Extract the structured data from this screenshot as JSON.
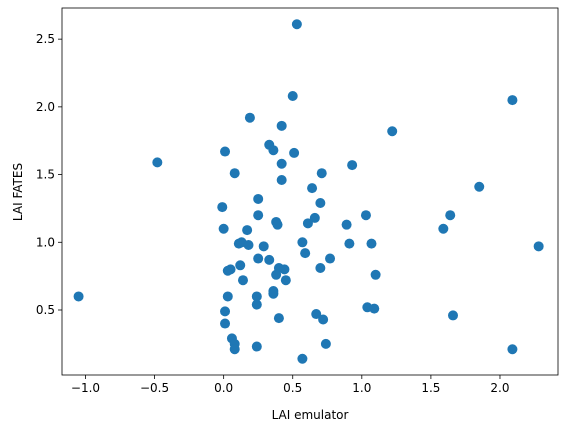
{
  "chart_data": {
    "type": "scatter",
    "title": "",
    "xlabel": "LAI emulator",
    "ylabel": "LAI FATES",
    "xlim": [
      -1.17,
      2.42
    ],
    "ylim": [
      0.02,
      2.73
    ],
    "x_ticks": [
      -1.0,
      -0.5,
      0.0,
      0.5,
      1.0,
      1.5,
      2.0
    ],
    "x_tick_labels": [
      "−1.0",
      "−0.5",
      "0.0",
      "0.5",
      "1.0",
      "1.5",
      "2.0"
    ],
    "y_ticks": [
      0.5,
      1.0,
      1.5,
      2.0,
      2.5
    ],
    "y_tick_labels": [
      "0.5",
      "1.0",
      "1.5",
      "2.0",
      "2.5"
    ],
    "grid": false,
    "legend": false,
    "marker_color": "#1f77b4",
    "points": [
      {
        "x": -1.05,
        "y": 0.6
      },
      {
        "x": -0.48,
        "y": 1.59
      },
      {
        "x": 0.53,
        "y": 2.61
      },
      {
        "x": 0.5,
        "y": 2.08
      },
      {
        "x": 0.19,
        "y": 1.92
      },
      {
        "x": 0.42,
        "y": 1.86
      },
      {
        "x": 0.01,
        "y": 1.67
      },
      {
        "x": 0.33,
        "y": 1.72
      },
      {
        "x": 0.36,
        "y": 1.68
      },
      {
        "x": 0.51,
        "y": 1.66
      },
      {
        "x": 0.42,
        "y": 1.58
      },
      {
        "x": 0.93,
        "y": 1.57
      },
      {
        "x": 0.08,
        "y": 1.51
      },
      {
        "x": 0.71,
        "y": 1.51
      },
      {
        "x": 0.42,
        "y": 1.46
      },
      {
        "x": 0.64,
        "y": 1.4
      },
      {
        "x": 0.25,
        "y": 1.32
      },
      {
        "x": 0.7,
        "y": 1.29
      },
      {
        "x": -0.01,
        "y": 1.26
      },
      {
        "x": 1.22,
        "y": 1.82
      },
      {
        "x": 2.09,
        "y": 2.05
      },
      {
        "x": 1.85,
        "y": 1.41
      },
      {
        "x": 0.25,
        "y": 1.2
      },
      {
        "x": 0.66,
        "y": 1.18
      },
      {
        "x": 1.03,
        "y": 1.2
      },
      {
        "x": 1.64,
        "y": 1.2
      },
      {
        "x": 0.38,
        "y": 1.15
      },
      {
        "x": 0.39,
        "y": 1.13
      },
      {
        "x": 0.61,
        "y": 1.14
      },
      {
        "x": 0.89,
        "y": 1.13
      },
      {
        "x": 0.0,
        "y": 1.1
      },
      {
        "x": 1.59,
        "y": 1.1
      },
      {
        "x": 0.17,
        "y": 1.09
      },
      {
        "x": 0.11,
        "y": 0.99
      },
      {
        "x": 0.13,
        "y": 1.0
      },
      {
        "x": 0.18,
        "y": 0.98
      },
      {
        "x": 0.29,
        "y": 0.97
      },
      {
        "x": 0.57,
        "y": 1.0
      },
      {
        "x": 0.91,
        "y": 0.99
      },
      {
        "x": 1.07,
        "y": 0.99
      },
      {
        "x": 2.28,
        "y": 0.97
      },
      {
        "x": 0.59,
        "y": 0.92
      },
      {
        "x": 0.25,
        "y": 0.88
      },
      {
        "x": 0.33,
        "y": 0.87
      },
      {
        "x": 0.77,
        "y": 0.88
      },
      {
        "x": 0.05,
        "y": 0.8
      },
      {
        "x": 0.03,
        "y": 0.79
      },
      {
        "x": 0.12,
        "y": 0.83
      },
      {
        "x": 0.4,
        "y": 0.81
      },
      {
        "x": 0.44,
        "y": 0.8
      },
      {
        "x": 0.7,
        "y": 0.81
      },
      {
        "x": 0.38,
        "y": 0.76
      },
      {
        "x": 1.1,
        "y": 0.76
      },
      {
        "x": 0.14,
        "y": 0.72
      },
      {
        "x": 0.45,
        "y": 0.72
      },
      {
        "x": 0.36,
        "y": 0.64
      },
      {
        "x": 0.36,
        "y": 0.62
      },
      {
        "x": 0.03,
        "y": 0.6
      },
      {
        "x": 0.24,
        "y": 0.6
      },
      {
        "x": 0.24,
        "y": 0.54
      },
      {
        "x": 1.04,
        "y": 0.52
      },
      {
        "x": 1.09,
        "y": 0.51
      },
      {
        "x": 0.01,
        "y": 0.49
      },
      {
        "x": 0.67,
        "y": 0.47
      },
      {
        "x": 1.66,
        "y": 0.46
      },
      {
        "x": 0.4,
        "y": 0.44
      },
      {
        "x": 0.72,
        "y": 0.43
      },
      {
        "x": 0.01,
        "y": 0.4
      },
      {
        "x": 0.06,
        "y": 0.29
      },
      {
        "x": 0.08,
        "y": 0.25
      },
      {
        "x": 0.74,
        "y": 0.25
      },
      {
        "x": 0.08,
        "y": 0.21
      },
      {
        "x": 0.24,
        "y": 0.23
      },
      {
        "x": 0.57,
        "y": 0.14
      },
      {
        "x": 2.09,
        "y": 0.21
      }
    ]
  }
}
